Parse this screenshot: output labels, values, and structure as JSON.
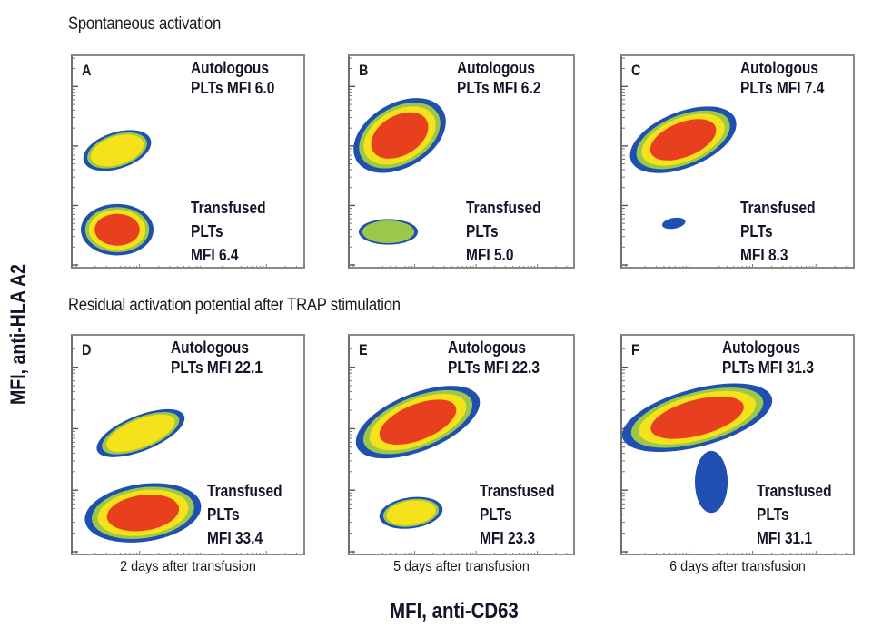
{
  "figure": {
    "y_axis_title": "MFI, anti-HLA A2",
    "x_axis_title": "MFI, anti-CD63",
    "sections": [
      {
        "title": "Spontaneous activation"
      },
      {
        "title": "Residual activation potential after TRAP stimulation"
      }
    ],
    "density_colors": {
      "low": "#1f4fb0",
      "mid_low": "#9cc84a",
      "mid": "#f5e21a",
      "high": "#e8401e"
    }
  },
  "chart_data": [
    {
      "type": "scatter",
      "panel": "A",
      "section": "Spontaneous activation",
      "x_caption": "",
      "autologous": {
        "label_line1": "Autologous",
        "label_line2": "PLTs MFI 6.0",
        "mfi": 6.0
      },
      "transfused": {
        "label_line1": "Transfused",
        "label_line2": "PLTs",
        "label_line3": "MFI 6.4",
        "mfi": 6.4
      },
      "xlabel": "MFI, anti-CD63",
      "ylabel": "MFI, anti-HLA A2",
      "xscale": "log",
      "yscale": "log"
    },
    {
      "type": "scatter",
      "panel": "B",
      "section": "Spontaneous activation",
      "x_caption": "",
      "autologous": {
        "label_line1": "Autologous",
        "label_line2": "PLTs MFI 6.2",
        "mfi": 6.2
      },
      "transfused": {
        "label_line1": "Transfused",
        "label_line2": "PLTs",
        "label_line3": "MFI 5.0",
        "mfi": 5.0
      },
      "xlabel": "MFI, anti-CD63",
      "ylabel": "MFI, anti-HLA A2",
      "xscale": "log",
      "yscale": "log"
    },
    {
      "type": "scatter",
      "panel": "C",
      "section": "Spontaneous activation",
      "x_caption": "",
      "autologous": {
        "label_line1": "Autologous",
        "label_line2": "PLTs MFI 7.4",
        "mfi": 7.4
      },
      "transfused": {
        "label_line1": "Transfused",
        "label_line2": "PLTs",
        "label_line3": "MFI 8.3",
        "mfi": 8.3
      },
      "xlabel": "MFI, anti-CD63",
      "ylabel": "MFI, anti-HLA A2",
      "xscale": "log",
      "yscale": "log"
    },
    {
      "type": "scatter",
      "panel": "D",
      "section": "Residual activation potential after TRAP stimulation",
      "x_caption": "2 days after transfusion",
      "autologous": {
        "label_line1": "Autologous",
        "label_line2": "PLTs MFI 22.1",
        "mfi": 22.1
      },
      "transfused": {
        "label_line1": "Transfused",
        "label_line2": "PLTs",
        "label_line3": "MFI 33.4",
        "mfi": 33.4
      },
      "xlabel": "MFI, anti-CD63",
      "ylabel": "MFI, anti-HLA A2",
      "xscale": "log",
      "yscale": "log"
    },
    {
      "type": "scatter",
      "panel": "E",
      "section": "Residual activation potential after TRAP stimulation",
      "x_caption": "5 days after transfusion",
      "autologous": {
        "label_line1": "Autologous",
        "label_line2": "PLTs MFI 22.3",
        "mfi": 22.3
      },
      "transfused": {
        "label_line1": "Transfused",
        "label_line2": "PLTs",
        "label_line3": "MFI 23.3",
        "mfi": 23.3
      },
      "xlabel": "MFI, anti-CD63",
      "ylabel": "MFI, anti-HLA A2",
      "xscale": "log",
      "yscale": "log"
    },
    {
      "type": "scatter",
      "panel": "F",
      "section": "Residual activation potential after TRAP stimulation",
      "x_caption": "6 days after transfusion",
      "autologous": {
        "label_line1": "Autologous",
        "label_line2": "PLTs MFI 31.3",
        "mfi": 31.3
      },
      "transfused": {
        "label_line1": "Transfused",
        "label_line2": "PLTs",
        "label_line3": "MFI 31.1",
        "mfi": 31.1
      },
      "xlabel": "MFI, anti-CD63",
      "ylabel": "MFI, anti-HLA A2",
      "xscale": "log",
      "yscale": "log"
    }
  ]
}
